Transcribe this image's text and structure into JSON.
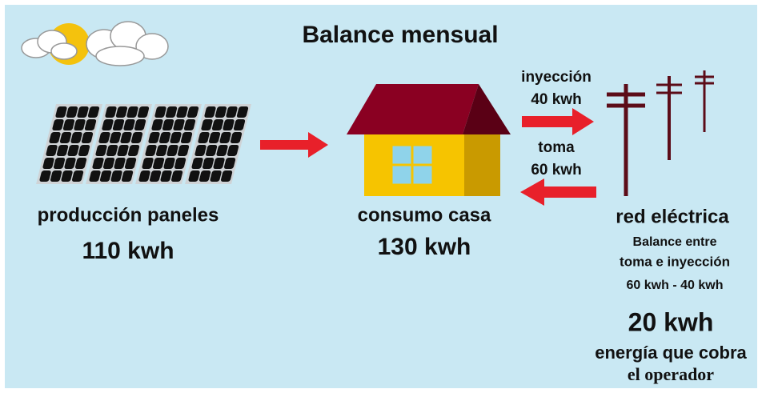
{
  "title": "Balance mensual",
  "panels": {
    "label": "producción paneles",
    "value": "110 kwh"
  },
  "house": {
    "label": "consumo casa",
    "value": "130 kwh"
  },
  "injection": {
    "label": "inyección",
    "value": "40 kwh"
  },
  "take": {
    "label": "toma",
    "value": "60 kwh"
  },
  "grid": {
    "label": "red eléctrica",
    "balance": [
      "Balance entre",
      "toma e inyección",
      "60 kwh - 40 kwh"
    ],
    "result": "20 kwh",
    "note": [
      "energía que cobra",
      "el operador"
    ]
  }
}
